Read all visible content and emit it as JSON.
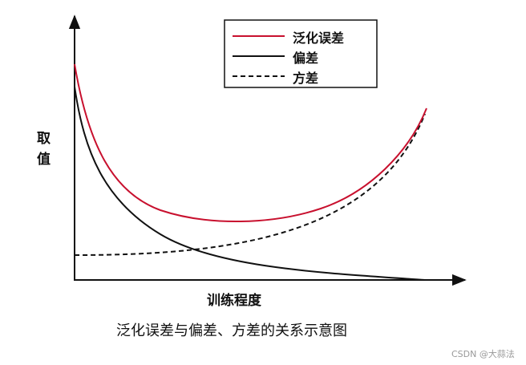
{
  "legend": [
    "泛化误差",
    "偏差",
    "方差"
  ],
  "y_axis_label": "取值",
  "x_axis_label": "训练程度",
  "caption": "泛化误差与偏差、方差的关系示意图",
  "watermark": "CSDN @大蒜法"
}
